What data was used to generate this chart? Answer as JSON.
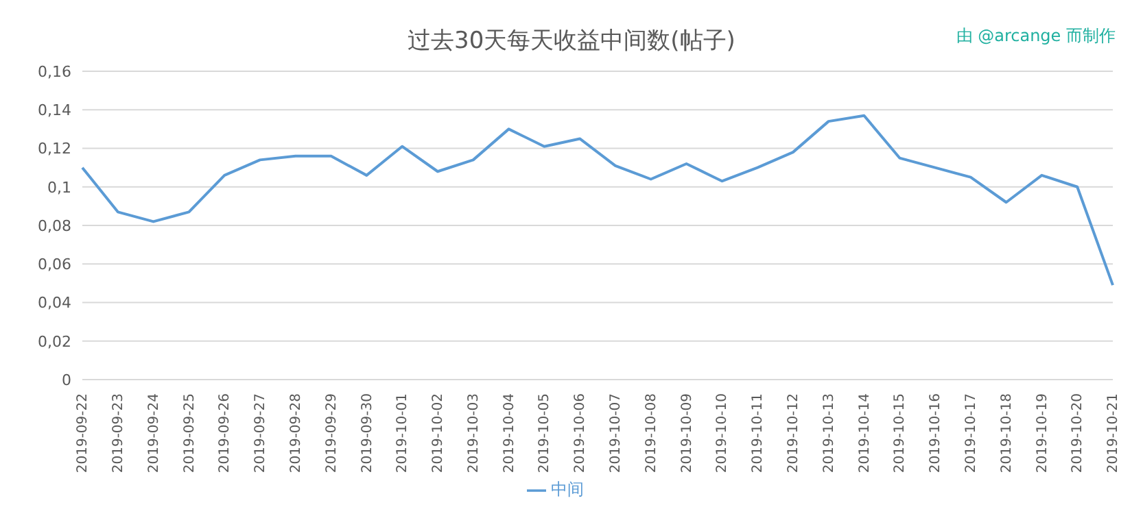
{
  "chart_data": {
    "type": "line",
    "title": "过去30天每天收益中间数(帖子)",
    "annotations": [
      "由 @arcange 而制作"
    ],
    "categories": [
      "2019-09-22",
      "2019-09-23",
      "2019-09-24",
      "2019-09-25",
      "2019-09-26",
      "2019-09-27",
      "2019-09-28",
      "2019-09-29",
      "2019-09-30",
      "2019-10-01",
      "2019-10-02",
      "2019-10-03",
      "2019-10-04",
      "2019-10-05",
      "2019-10-06",
      "2019-10-07",
      "2019-10-08",
      "2019-10-09",
      "2019-10-10",
      "2019-10-11",
      "2019-10-12",
      "2019-10-13",
      "2019-10-14",
      "2019-10-15",
      "2019-10-16",
      "2019-10-17",
      "2019-10-18",
      "2019-10-19",
      "2019-10-20",
      "2019-10-21"
    ],
    "series": [
      {
        "name": "中间",
        "color": "#5b9bd5",
        "values": [
          0.11,
          0.087,
          0.082,
          0.087,
          0.106,
          0.114,
          0.116,
          0.116,
          0.106,
          0.121,
          0.108,
          0.114,
          0.13,
          0.121,
          0.125,
          0.111,
          0.104,
          0.112,
          0.103,
          0.11,
          0.118,
          0.134,
          0.137,
          0.115,
          0.11,
          0.105,
          0.092,
          0.106,
          0.1,
          0.049
        ]
      }
    ],
    "ylim": [
      0,
      0.16
    ],
    "yticks": [
      0,
      {
        "value": 0.02,
        "label": "0,02"
      },
      {
        "value": 0.04,
        "label": "0,04"
      },
      {
        "value": 0.06,
        "label": "0,06"
      },
      {
        "value": 0.08,
        "label": "0,08"
      },
      {
        "value": 0.1,
        "label": "0,1"
      },
      {
        "value": 0.12,
        "label": "0,12"
      },
      {
        "value": 0.14,
        "label": "0,14"
      },
      {
        "value": 0.16,
        "label": "0,16"
      }
    ],
    "grid": "y",
    "legend": "bottom",
    "marker": "none",
    "line_style": "solid"
  }
}
